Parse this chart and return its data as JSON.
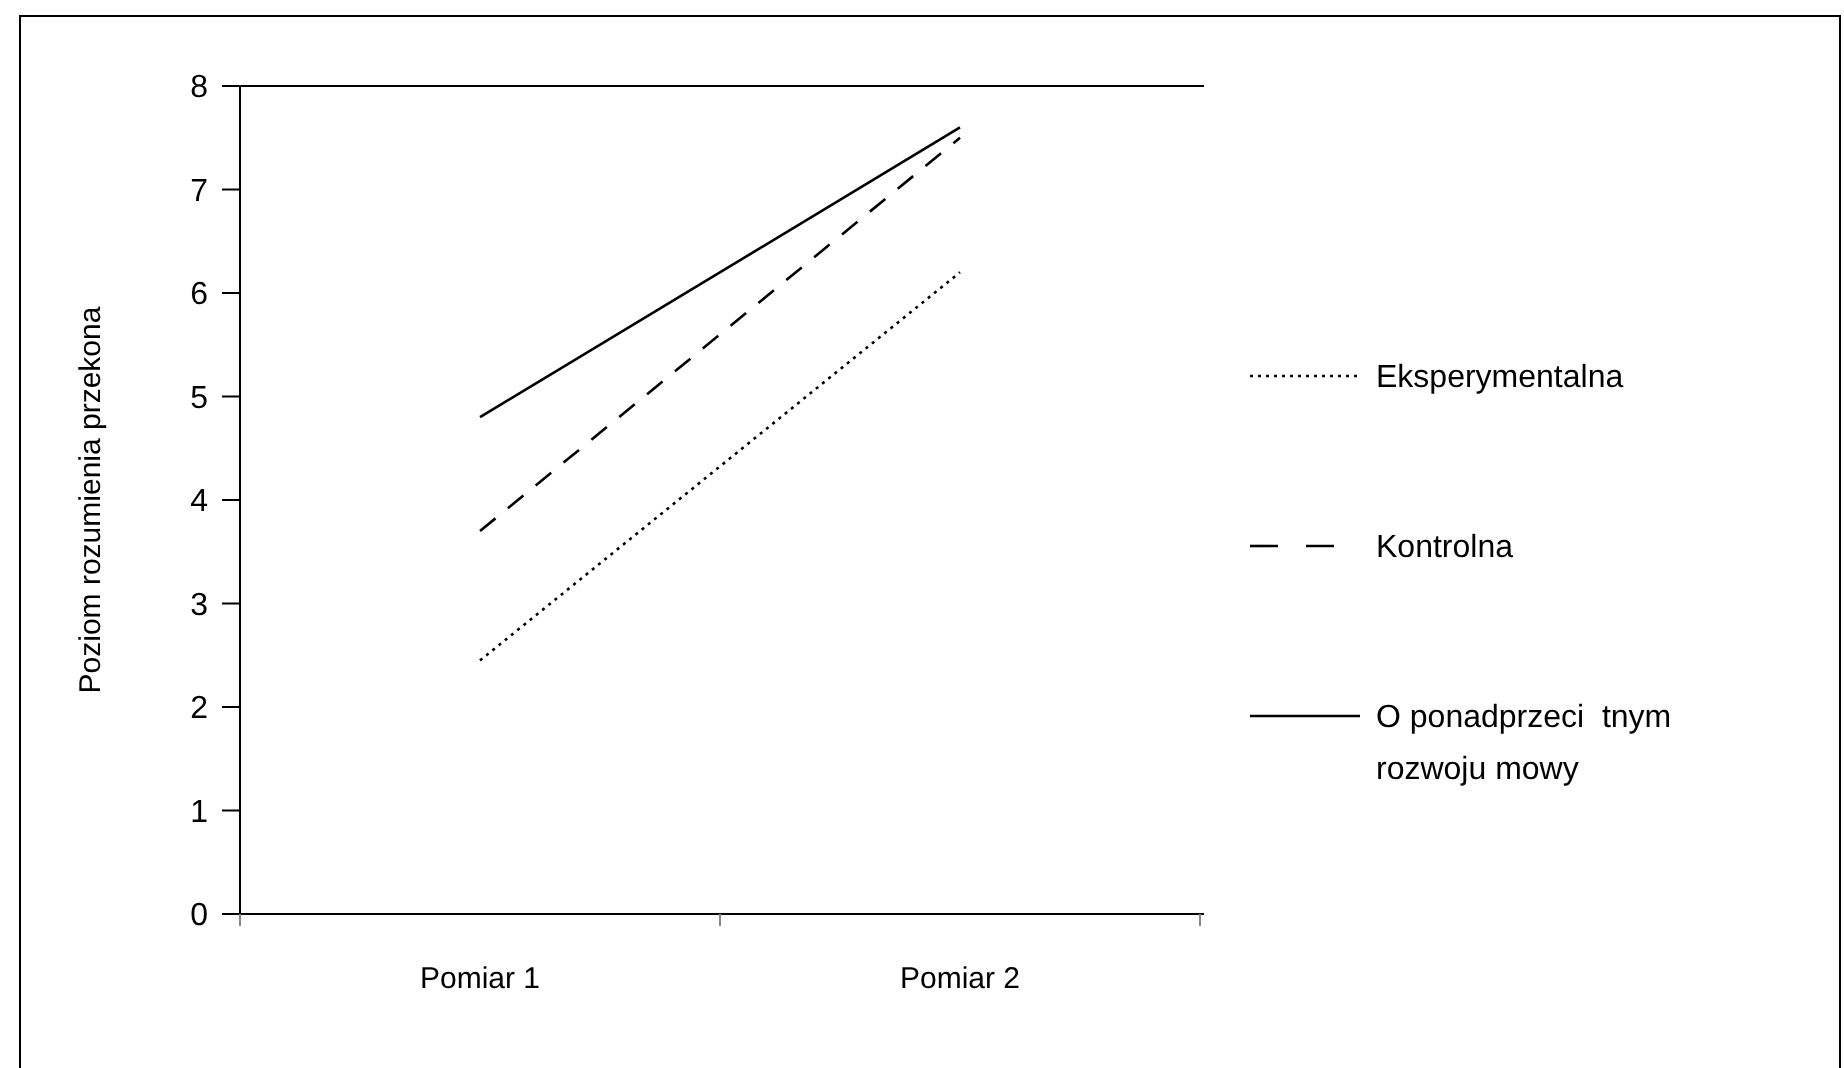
{
  "chart_data": {
    "type": "line",
    "ylabel": "Poziom rozumienia przekona",
    "categories": [
      "Pomiar 1",
      "Pomiar 2"
    ],
    "ylim": [
      0,
      8
    ],
    "yticks": [
      0,
      1,
      2,
      3,
      4,
      5,
      6,
      7,
      8
    ],
    "legend": "right",
    "marker": "none",
    "grid": false,
    "series": [
      {
        "name": "Eksperymentalna",
        "color": "#000000",
        "line_style": "dotted",
        "values": [
          2.45,
          6.2
        ]
      },
      {
        "name": "Kontrolna",
        "color": "#000000",
        "line_style": "dashed",
        "values": [
          3.7,
          7.5
        ]
      },
      {
        "name": "O ponadprzeci  tnym rozwoju mowy",
        "color": "#000000",
        "line_style": "solid",
        "values": [
          4.8,
          7.6
        ]
      }
    ]
  }
}
